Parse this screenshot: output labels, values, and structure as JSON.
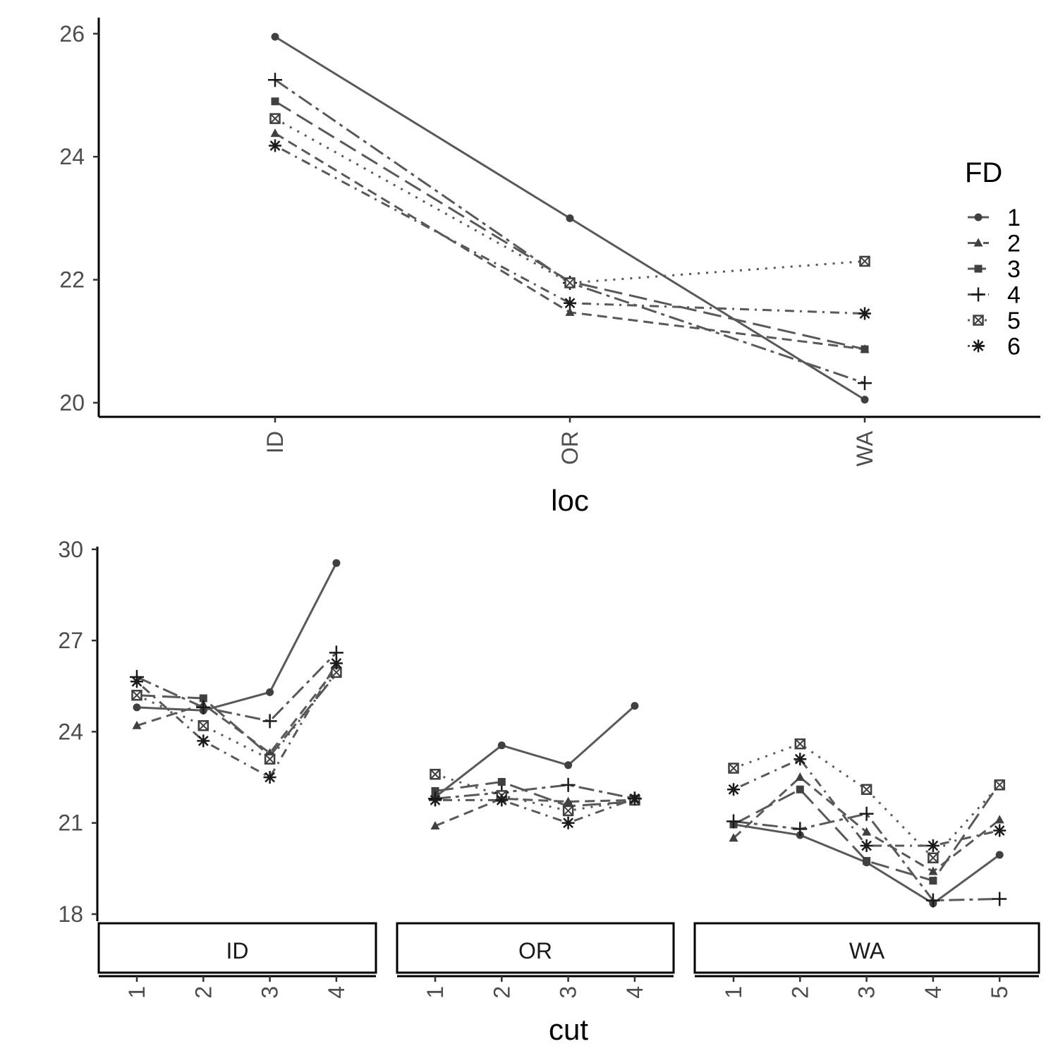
{
  "colors": {
    "line": "#595959",
    "marker": "#404040",
    "axis": "#000000",
    "tick_text": "#4d4d4d"
  },
  "legend": {
    "title": "FD",
    "entries": [
      {
        "label": "1",
        "shape": "circle",
        "linetype": "solid"
      },
      {
        "label": "2",
        "shape": "triangle",
        "linetype": "dashed"
      },
      {
        "label": "3",
        "shape": "square",
        "linetype": "longdash"
      },
      {
        "label": "4",
        "shape": "plus",
        "linetype": "twodash"
      },
      {
        "label": "5",
        "shape": "boxcross",
        "linetype": "dotted"
      },
      {
        "label": "6",
        "shape": "asterisk",
        "linetype": "dotdash"
      }
    ]
  },
  "chart_data": [
    {
      "type": "line",
      "xlabel": "loc",
      "ylabel": "",
      "categories": [
        "ID",
        "OR",
        "WA"
      ],
      "ylim": [
        19.8,
        26.3
      ],
      "yticks": [
        20,
        22,
        24,
        26
      ],
      "series": [
        {
          "name": "1",
          "values": [
            25.95,
            23.0,
            20.05
          ]
        },
        {
          "name": "2",
          "values": [
            24.38,
            21.47,
            20.87
          ]
        },
        {
          "name": "3",
          "values": [
            24.9,
            21.97,
            20.87
          ]
        },
        {
          "name": "4",
          "values": [
            25.25,
            21.95,
            20.32
          ]
        },
        {
          "name": "5",
          "values": [
            24.62,
            21.95,
            22.3
          ]
        },
        {
          "name": "6",
          "values": [
            24.18,
            21.62,
            21.45
          ]
        }
      ]
    },
    {
      "type": "line",
      "xlabel": "cut",
      "ylabel": "",
      "ylim": [
        17.95,
        30.05
      ],
      "yticks": [
        18,
        21,
        24,
        27,
        30
      ],
      "facets": [
        {
          "label": "ID",
          "categories": [
            "1",
            "2",
            "3",
            "4"
          ],
          "series": [
            {
              "name": "1",
              "values": [
                24.8,
                24.7,
                25.3,
                29.55
              ]
            },
            {
              "name": "2",
              "values": [
                24.2,
                24.9,
                23.3,
                26.1
              ]
            },
            {
              "name": "3",
              "values": [
                25.2,
                25.1,
                23.2,
                25.9
              ]
            },
            {
              "name": "4",
              "values": [
                25.8,
                24.8,
                24.35,
                26.6
              ]
            },
            {
              "name": "5",
              "values": [
                25.2,
                24.2,
                23.1,
                25.95
              ]
            },
            {
              "name": "6",
              "values": [
                25.65,
                23.7,
                22.5,
                26.25
              ]
            }
          ]
        },
        {
          "label": "OR",
          "categories": [
            "1",
            "2",
            "3",
            "4"
          ],
          "series": [
            {
              "name": "1",
              "values": [
                21.85,
                23.55,
                22.9,
                24.85
              ]
            },
            {
              "name": "2",
              "values": [
                20.9,
                21.8,
                21.7,
                21.75
              ]
            },
            {
              "name": "3",
              "values": [
                22.05,
                22.35,
                21.55,
                21.7
              ]
            },
            {
              "name": "4",
              "values": [
                21.8,
                22.0,
                22.25,
                21.8
              ]
            },
            {
              "name": "5",
              "values": [
                22.6,
                21.9,
                21.4,
                21.75
              ]
            },
            {
              "name": "6",
              "values": [
                21.75,
                21.75,
                21.0,
                21.8
              ]
            }
          ]
        },
        {
          "label": "WA",
          "categories": [
            "1",
            "2",
            "3",
            "4",
            "5"
          ],
          "series": [
            {
              "name": "1",
              "values": [
                20.95,
                20.6,
                19.7,
                18.35,
                19.95
              ]
            },
            {
              "name": "2",
              "values": [
                20.5,
                22.5,
                20.7,
                19.4,
                21.1
              ]
            },
            {
              "name": "3",
              "values": [
                20.95,
                22.1,
                19.75,
                19.1,
                22.3
              ]
            },
            {
              "name": "4",
              "values": [
                21.05,
                20.8,
                21.3,
                18.45,
                18.5
              ]
            },
            {
              "name": "5",
              "values": [
                22.8,
                23.6,
                22.1,
                19.85,
                22.25
              ]
            },
            {
              "name": "6",
              "values": [
                22.1,
                23.1,
                20.25,
                20.25,
                20.75
              ]
            }
          ]
        }
      ]
    }
  ]
}
